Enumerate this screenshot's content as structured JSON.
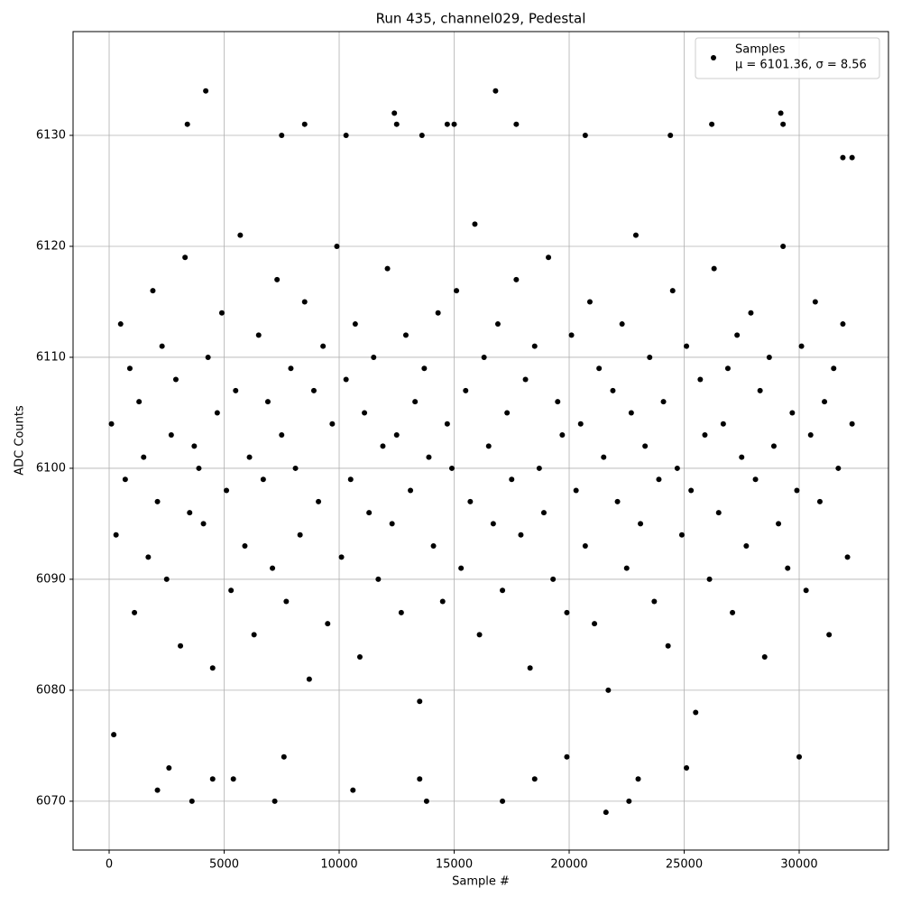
{
  "chart_data": {
    "type": "scatter",
    "title": "Run 435, channel029, Pedestal",
    "x_label": "Sample #",
    "y_label": "ADC Counts",
    "legend": "upper right",
    "legend_note": "μ = 6101.36, σ = 8.56",
    "grid": true,
    "xlim": [
      -1569,
      33882
    ],
    "ylim": [
      6065.6,
      6139.35
    ],
    "xticks": [
      0,
      5000,
      10000,
      15000,
      20000,
      25000,
      30000
    ],
    "yticks": [
      6070,
      6080,
      6090,
      6100,
      6110,
      6120,
      6130
    ],
    "series": [
      {
        "name": "Samples",
        "color": "#000000",
        "x": [
          200,
          2100,
          2600,
          3400,
          3600,
          4200,
          4500,
          5400,
          7200,
          7500,
          7600,
          8500,
          10300,
          10600,
          12400,
          12500,
          13600,
          13500,
          13800,
          14700,
          15000,
          16800,
          17100,
          17700,
          18500,
          19900,
          20700,
          21600,
          22600,
          23000,
          24400,
          25100,
          26200,
          29200,
          29300,
          30000,
          31900,
          32300,
          100,
          300,
          500,
          700,
          900,
          1100,
          1300,
          1500,
          1700,
          1900,
          2100,
          2300,
          2500,
          2700,
          2900,
          3100,
          3300,
          3500,
          3700,
          3900,
          4100,
          4300,
          4500,
          4700,
          4900,
          5100,
          5300,
          5500,
          5700,
          5900,
          6100,
          6300,
          6500,
          6700,
          6900,
          7100,
          7300,
          7500,
          7700,
          7900,
          8100,
          8300,
          8500,
          8700,
          8900,
          9100,
          9300,
          9500,
          9700,
          9900,
          10100,
          10300,
          10500,
          10700,
          10900,
          11100,
          11300,
          11500,
          11700,
          11900,
          12100,
          12300,
          12500,
          12700,
          12900,
          13100,
          13300,
          13500,
          13700,
          13900,
          14100,
          14300,
          14500,
          14700,
          14900,
          15100,
          15300,
          15500,
          15700,
          15900,
          16100,
          16300,
          16500,
          16700,
          16900,
          17100,
          17300,
          17500,
          17700,
          17900,
          18100,
          18300,
          18500,
          18700,
          18900,
          19100,
          19300,
          19500,
          19700,
          19900,
          20100,
          20300,
          20500,
          20700,
          20900,
          21100,
          21300,
          21500,
          21700,
          21900,
          22100,
          22300,
          22500,
          22700,
          22900,
          23100,
          23300,
          23500,
          23700,
          23900,
          24100,
          24300,
          24500,
          24700,
          24900,
          25100,
          25300,
          25500,
          25700,
          25900,
          26100,
          26300,
          26500,
          26700,
          26900,
          27100,
          27300,
          27500,
          27700,
          27900,
          28100,
          28300,
          28500,
          28700,
          28900,
          29100,
          29300,
          29500,
          29700,
          29900,
          30100,
          30300,
          30500,
          30700,
          30900,
          31100,
          31300,
          31500,
          31700,
          31900,
          32100,
          32300
        ],
        "values": [
          6076,
          6071,
          6073,
          6131,
          6070,
          6134,
          6072,
          6072,
          6070,
          6130,
          6074,
          6131,
          6130,
          6071,
          6132,
          6131,
          6130,
          6072,
          6070,
          6131,
          6131,
          6134,
          6070,
          6131,
          6072,
          6074,
          6130,
          6069,
          6070,
          6072,
          6130,
          6073,
          6131,
          6132,
          6131,
          6074,
          6128,
          6128,
          6104,
          6094,
          6113,
          6099,
          6109,
          6087,
          6106,
          6101,
          6092,
          6116,
          6097,
          6111,
          6090,
          6103,
          6108,
          6084,
          6119,
          6096,
          6102,
          6100,
          6095,
          6110,
          6082,
          6105,
          6114,
          6098,
          6089,
          6107,
          6121,
          6093,
          6101,
          6085,
          6112,
          6099,
          6106,
          6091,
          6117,
          6103,
          6088,
          6109,
          6100,
          6094,
          6115,
          6081,
          6107,
          6097,
          6111,
          6086,
          6104,
          6120,
          6092,
          6108,
          6099,
          6113,
          6083,
          6105,
          6096,
          6110,
          6090,
          6102,
          6118,
          6095,
          6103,
          6087,
          6112,
          6098,
          6106,
          6079,
          6109,
          6101,
          6093,
          6114,
          6088,
          6104,
          6100,
          6116,
          6091,
          6107,
          6097,
          6122,
          6085,
          6110,
          6102,
          6095,
          6113,
          6089,
          6105,
          6099,
          6117,
          6094,
          6108,
          6082,
          6111,
          6100,
          6096,
          6119,
          6090,
          6106,
          6103,
          6087,
          6112,
          6098,
          6104,
          6093,
          6115,
          6086,
          6109,
          6101,
          6080,
          6107,
          6097,
          6113,
          6091,
          6105,
          6121,
          6095,
          6102,
          6110,
          6088,
          6099,
          6106,
          6084,
          6116,
          6100,
          6094,
          6111,
          6098,
          6078,
          6108,
          6103,
          6090,
          6118,
          6096,
          6104,
          6109,
          6087,
          6112,
          6101,
          6093,
          6114,
          6099,
          6107,
          6083,
          6110,
          6102,
          6095,
          6120,
          6091,
          6105,
          6098,
          6111,
          6089,
          6103,
          6115,
          6097,
          6106,
          6085,
          6109,
          6100,
          6113,
          6092,
          6104
        ]
      }
    ]
  }
}
